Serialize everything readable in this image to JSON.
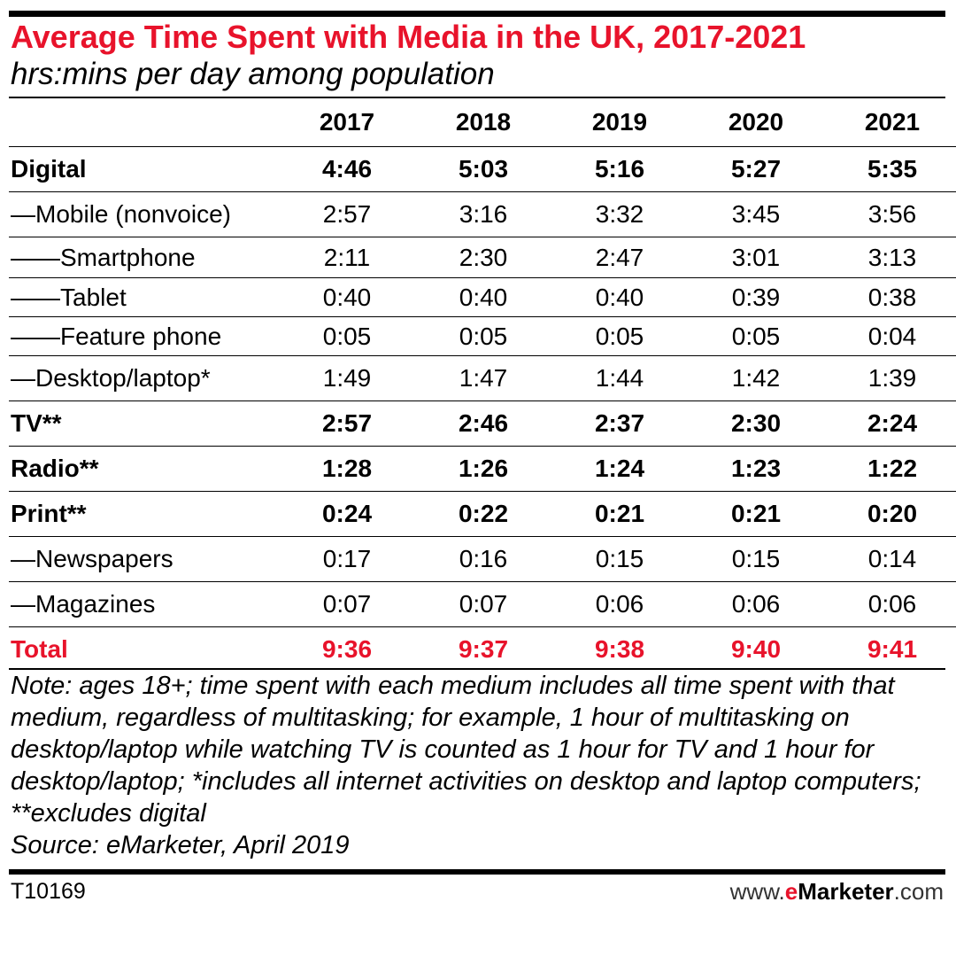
{
  "chart_data": {
    "type": "table",
    "title": "Average Time Spent with Media in the UK, 2017-2021",
    "subtitle": "hrs:mins per day among population",
    "columns": [
      "2017",
      "2018",
      "2019",
      "2020",
      "2021"
    ],
    "rows": [
      {
        "label": "Digital",
        "style": "bold",
        "values": [
          "4:46",
          "5:03",
          "5:16",
          "5:27",
          "5:35"
        ]
      },
      {
        "label": "—Mobile (nonvoice)",
        "style": "normal",
        "values": [
          "2:57",
          "3:16",
          "3:32",
          "3:45",
          "3:56"
        ]
      },
      {
        "label": "——Smartphone",
        "style": "normal",
        "values": [
          "2:11",
          "2:30",
          "2:47",
          "3:01",
          "3:13"
        ]
      },
      {
        "label": "——Tablet",
        "style": "normal",
        "values": [
          "0:40",
          "0:40",
          "0:40",
          "0:39",
          "0:38"
        ]
      },
      {
        "label": "——Feature phone",
        "style": "normal",
        "values": [
          "0:05",
          "0:05",
          "0:05",
          "0:05",
          "0:04"
        ]
      },
      {
        "label": "—Desktop/laptop*",
        "style": "normal",
        "values": [
          "1:49",
          "1:47",
          "1:44",
          "1:42",
          "1:39"
        ]
      },
      {
        "label": "TV**",
        "style": "bold",
        "values": [
          "2:57",
          "2:46",
          "2:37",
          "2:30",
          "2:24"
        ]
      },
      {
        "label": "Radio**",
        "style": "bold",
        "values": [
          "1:28",
          "1:26",
          "1:24",
          "1:23",
          "1:22"
        ]
      },
      {
        "label": "Print**",
        "style": "bold",
        "values": [
          "0:24",
          "0:22",
          "0:21",
          "0:21",
          "0:20"
        ]
      },
      {
        "label": "—Newspapers",
        "style": "normal",
        "values": [
          "0:17",
          "0:16",
          "0:15",
          "0:15",
          "0:14"
        ]
      },
      {
        "label": "—Magazines",
        "style": "normal",
        "values": [
          "0:07",
          "0:07",
          "0:06",
          "0:06",
          "0:06"
        ]
      },
      {
        "label": "Total",
        "style": "total",
        "values": [
          "9:36",
          "9:37",
          "9:38",
          "9:40",
          "9:41"
        ]
      }
    ],
    "note": "Note: ages 18+; time spent with each medium includes all time spent with that medium, regardless of multitasking; for example, 1 hour of multitasking on desktop/laptop while watching TV is counted as 1 hour for TV and 1 hour for desktop/laptop; *includes all internet activities on desktop and laptop computers; **excludes digital",
    "source": "Source: eMarketer, April 2019"
  },
  "footer": {
    "code": "T10169",
    "brand_prefix": "www.",
    "brand_e": "e",
    "brand_name": "Marketer",
    "brand_suffix": ".com"
  },
  "colors": {
    "accent": "#e8132b",
    "text": "#000000"
  }
}
